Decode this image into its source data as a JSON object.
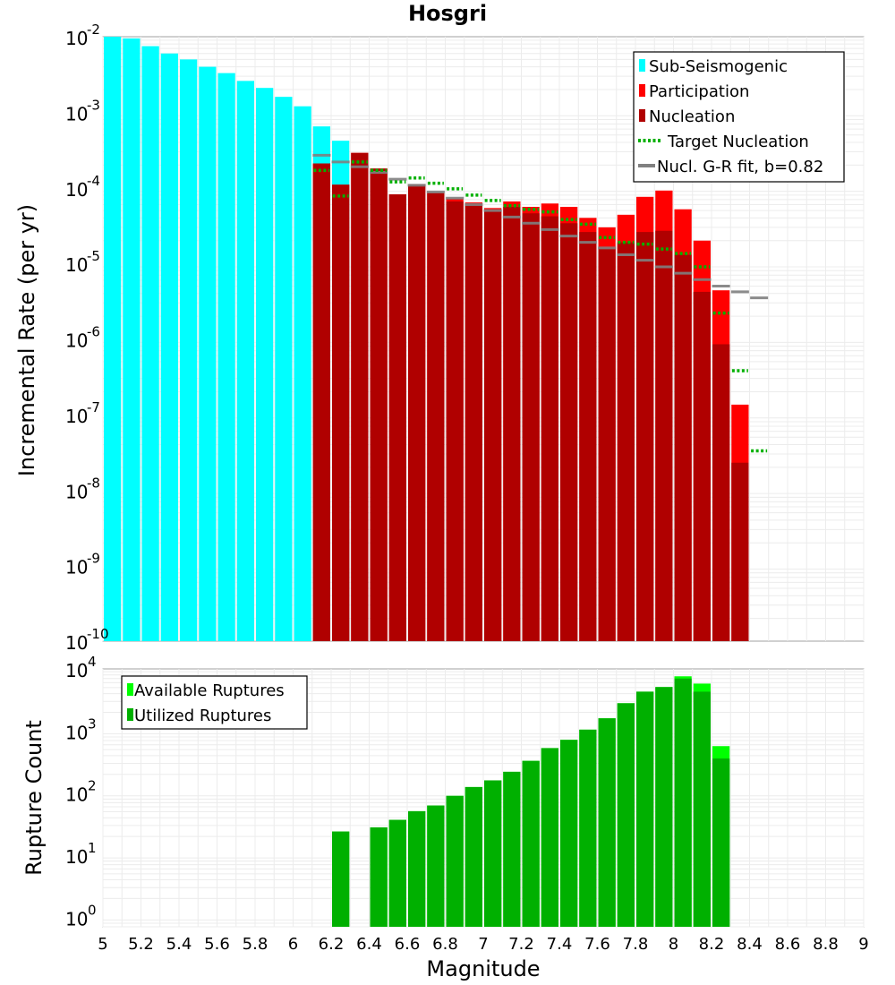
{
  "chart_data": [
    {
      "type": "bar",
      "title": "Hosgri",
      "ylabel": "Incremental Rate (per yr)",
      "yscale": "log",
      "ylim": [
        1e-10,
        0.01
      ],
      "xlim": [
        5,
        9
      ],
      "ytick_labels": [
        {
          "base": "10",
          "exp": "-2"
        },
        {
          "base": "10",
          "exp": "-3"
        },
        {
          "base": "10",
          "exp": "-4"
        },
        {
          "base": "10",
          "exp": "-5"
        },
        {
          "base": "10",
          "exp": "-6"
        },
        {
          "base": "10",
          "exp": "-7"
        },
        {
          "base": "10",
          "exp": "-8"
        },
        {
          "base": "10",
          "exp": "-9"
        },
        {
          "base": "10",
          "exp": "-10"
        }
      ],
      "grid": true,
      "legend_position": "top-right",
      "legend": [
        "Sub-Seismogenic",
        "Participation",
        "Nucleation",
        "Target Nucleation",
        "Nucl. G-R fit, b=0.82"
      ],
      "colors": {
        "sub_seismogenic": "#00ffff",
        "participation": "#ff0000",
        "nucleation": "#b00000",
        "target": "#00b000",
        "gr_fit": "#808080"
      },
      "series": [
        {
          "name": "Sub-Seismogenic",
          "x": [
            5.05,
            5.15,
            5.25,
            5.35,
            5.45,
            5.55,
            5.65,
            5.75,
            5.85,
            5.95,
            6.05,
            6.15,
            6.25
          ],
          "values": [
            0.01,
            0.0095,
            0.0075,
            0.006,
            0.005,
            0.004,
            0.0033,
            0.0026,
            0.0021,
            0.0016,
            0.0012,
            0.00065,
            0.00042
          ]
        },
        {
          "name": "Participation",
          "x": [
            6.15,
            6.25,
            6.35,
            6.45,
            6.55,
            6.65,
            6.75,
            6.85,
            6.95,
            7.05,
            7.15,
            7.25,
            7.35,
            7.45,
            7.55,
            7.65,
            7.75,
            7.85,
            7.95,
            8.05,
            8.15,
            8.25,
            8.35
          ],
          "values": [
            0.00021,
            0.00011,
            0.00029,
            0.00018,
            8.2e-05,
            0.00011,
            8.6e-05,
            7.2e-05,
            6.4e-05,
            5.4e-05,
            6.6e-05,
            5.6e-05,
            6.2e-05,
            5.6e-05,
            4e-05,
            3e-05,
            4.4e-05,
            7.6e-05,
            9.2e-05,
            5.2e-05,
            2e-05,
            4.4e-06,
            1.35e-07
          ]
        },
        {
          "name": "Nucleation",
          "x": [
            6.15,
            6.25,
            6.35,
            6.45,
            6.55,
            6.65,
            6.75,
            6.85,
            6.95,
            7.05,
            7.15,
            7.25,
            7.35,
            7.45,
            7.55,
            7.65,
            7.75,
            7.85,
            7.95,
            8.05,
            8.15,
            8.25,
            8.35
          ],
          "values": [
            0.00021,
            0.00011,
            0.00029,
            0.00018,
            8.2e-05,
            0.00011,
            8.6e-05,
            6.6e-05,
            6e-05,
            5e-05,
            5.6e-05,
            4.6e-05,
            4.2e-05,
            3.4e-05,
            2.6e-05,
            1.6e-05,
            1.9e-05,
            2.6e-05,
            2.7e-05,
            1.3e-05,
            4.2e-06,
            8.5e-07,
            2.3e-08
          ]
        },
        {
          "name": "Target Nucleation",
          "x": [
            6.15,
            6.25,
            6.35,
            6.45,
            6.55,
            6.65,
            6.75,
            6.85,
            6.95,
            7.05,
            7.15,
            7.25,
            7.35,
            7.45,
            7.55,
            7.65,
            7.75,
            7.85,
            7.95,
            8.05,
            8.15,
            8.25,
            8.35,
            8.45
          ],
          "values": [
            0.00017,
            7.8e-05,
            0.00022,
            0.00017,
            0.00012,
            0.000135,
            0.000115,
            9.7e-05,
            8e-05,
            6.8e-05,
            5.8e-05,
            5.2e-05,
            4.8e-05,
            3.8e-05,
            3.3e-05,
            2.2e-05,
            1.9e-05,
            1.8e-05,
            1.55e-05,
            1.35e-05,
            9e-06,
            2.2e-06,
            3.8e-07,
            3.3e-08
          ]
        },
        {
          "name": "Nucl. G-R fit, b=0.82",
          "x": [
            6.15,
            6.25,
            6.35,
            6.45,
            6.55,
            6.65,
            6.75,
            6.85,
            6.95,
            7.05,
            7.15,
            7.25,
            7.35,
            7.45,
            7.55,
            7.65,
            7.75,
            7.85,
            7.95,
            8.05,
            8.15,
            8.25,
            8.35,
            8.45
          ],
          "values": [
            0.00027,
            0.00022,
            0.00019,
            0.00016,
            0.00013,
            0.000108,
            8.8e-05,
            7.3e-05,
            6e-05,
            5e-05,
            4.1e-05,
            3.4e-05,
            2.8e-05,
            2.3e-05,
            1.9e-05,
            1.6e-05,
            1.3e-05,
            1.1e-05,
            9e-06,
            7.4e-06,
            6.1e-06,
            5e-06,
            4.2e-06,
            3.5e-06
          ]
        }
      ]
    },
    {
      "type": "bar",
      "xlabel": "Magnitude",
      "ylabel": "Rupture Count",
      "yscale": "log",
      "ylim": [
        0.7,
        10000
      ],
      "xlim": [
        5,
        9
      ],
      "ytick_labels": [
        {
          "base": "10",
          "exp": "4"
        },
        {
          "base": "10",
          "exp": "3"
        },
        {
          "base": "10",
          "exp": "2"
        },
        {
          "base": "10",
          "exp": "1"
        },
        {
          "base": "10",
          "exp": "0"
        }
      ],
      "xtick_labels": [
        "5",
        "5.2",
        "5.4",
        "5.6",
        "5.8",
        "6",
        "6.2",
        "6.4",
        "6.6",
        "6.8",
        "7",
        "7.2",
        "7.4",
        "7.6",
        "7.8",
        "8",
        "8.2",
        "8.4",
        "8.6",
        "8.8",
        "9"
      ],
      "grid": true,
      "legend_position": "top-left",
      "legend": [
        "Available Ruptures",
        "Utilized Ruptures"
      ],
      "colors": {
        "available": "#00ff00",
        "utilized": "#00b000"
      },
      "series": [
        {
          "name": "Available Ruptures",
          "x": [
            6.25,
            6.45,
            6.55,
            6.65,
            6.75,
            6.85,
            6.95,
            7.05,
            7.15,
            7.25,
            7.35,
            7.45,
            7.55,
            7.65,
            7.75,
            7.85,
            7.95,
            8.05,
            8.15,
            8.25
          ],
          "values": [
            24,
            28,
            37,
            51,
            63,
            90,
            125,
            160,
            220,
            330,
            530,
            720,
            1050,
            1600,
            2800,
            4300,
            5100,
            7600,
            5800,
            570
          ]
        },
        {
          "name": "Utilized Ruptures",
          "x": [
            6.25,
            6.45,
            6.55,
            6.65,
            6.75,
            6.85,
            6.95,
            7.05,
            7.15,
            7.25,
            7.35,
            7.45,
            7.55,
            7.65,
            7.75,
            7.85,
            7.95,
            8.05,
            8.15,
            8.25
          ],
          "values": [
            24,
            28,
            37,
            51,
            63,
            90,
            125,
            160,
            220,
            330,
            530,
            720,
            1050,
            1600,
            2800,
            4300,
            5100,
            7000,
            4300,
            360
          ]
        }
      ]
    }
  ]
}
